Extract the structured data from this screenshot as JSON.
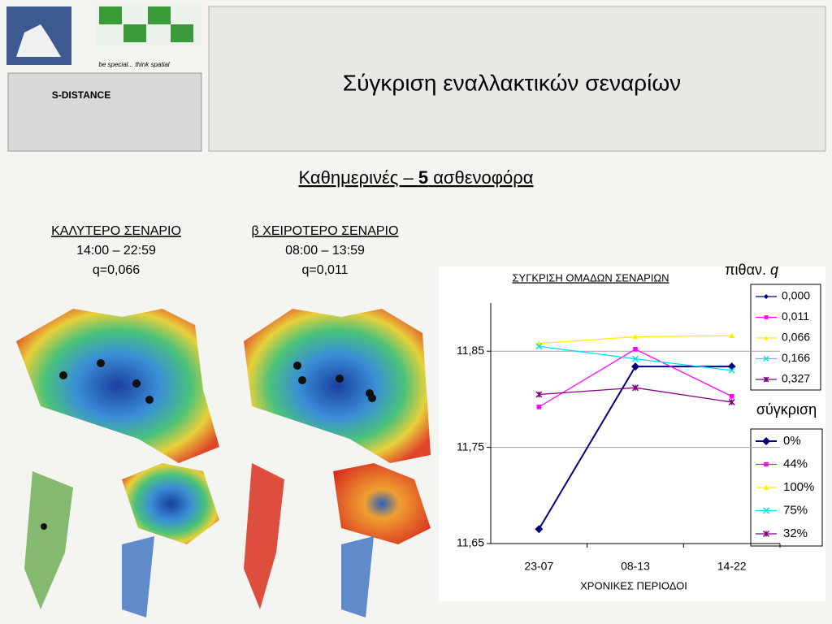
{
  "header": {
    "title": "Σύγκριση εναλλακτικών σεναρίων",
    "logo_slogan": "be special... think spatial",
    "logo_product": "S-DISTANCE"
  },
  "subtitle": {
    "before": "Καθημερινές – ",
    "bold": "5",
    "after": " ασθενοφόρα"
  },
  "scenarios": [
    {
      "title": "ΚΑΛΥΤΕΡΟ ΣΕΝΑΡΙΟ",
      "hours": "14:00 – 22:59",
      "q": "q=0,066"
    },
    {
      "title": "β ΧΕΙΡΟΤΕΡΟ ΣΕΝΑΡΙΟ",
      "hours": "08:00 – 13:59",
      "q": "q=0,011"
    }
  ],
  "chart_data": {
    "type": "line",
    "title": "ΣΥΓΚΡΙΣΗ ΟΜΑΔΩΝ ΣΕΝΑΡΙΩΝ",
    "x_label": "ΧΡΟΝΙΚΕΣ ΠΕΡΙΟΔΟΙ",
    "categories": [
      "23-07",
      "08-13",
      "14-22"
    ],
    "ylim": [
      11.65,
      11.9
    ],
    "yticks": [
      {
        "value": 11.65,
        "label": "11,65"
      },
      {
        "value": 11.75,
        "label": "11,75"
      },
      {
        "value": 11.85,
        "label": "11,85"
      }
    ],
    "grid": true,
    "legend_title": {
      "text": "πιθαν.",
      "symbol": "q"
    },
    "series": [
      {
        "name": "0,000",
        "color": "#000080",
        "marker": "diamond",
        "values": [
          11.665,
          11.834,
          11.834
        ]
      },
      {
        "name": "0,011",
        "color": "#ff00ff",
        "marker": "square",
        "values": [
          11.792,
          11.852,
          11.803
        ]
      },
      {
        "name": "0,066",
        "color": "#ffee00",
        "marker": "triangle",
        "values": [
          11.858,
          11.865,
          11.866
        ]
      },
      {
        "name": "0,166",
        "color": "#00e0f0",
        "marker": "x",
        "values": [
          11.855,
          11.842,
          11.83
        ]
      },
      {
        "name": "0,327",
        "color": "#800080",
        "marker": "star",
        "values": [
          11.805,
          11.812,
          11.797
        ]
      }
    ],
    "legend2": {
      "title": "σύγκριση",
      "labels": [
        "0%",
        "44%",
        "100%",
        "75%",
        "32%"
      ]
    }
  }
}
